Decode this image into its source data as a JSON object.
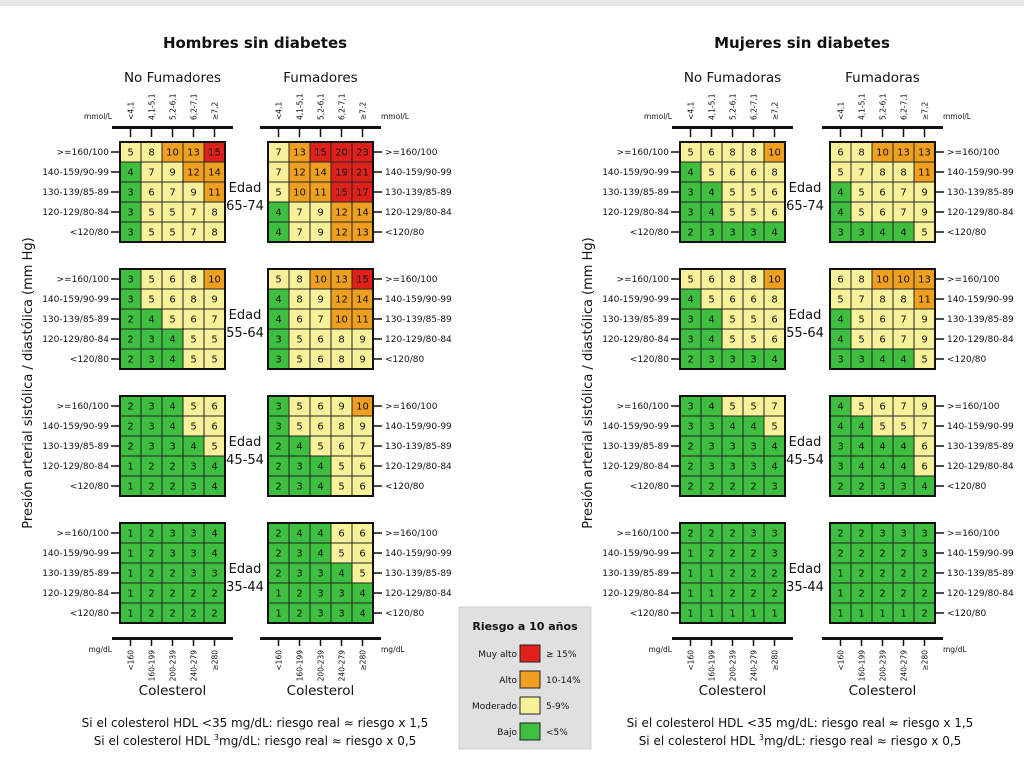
{
  "chart_data": [
    {
      "type": "heatmap",
      "title": "Hombres sin diabetes",
      "ylabel": "Presión arterial sistólica / diastólica (mm Hg)",
      "xlabel": "Colesterol",
      "columns_mmol": [
        "<4,1",
        "4,1-5,1",
        "5,2-6,1",
        "6,2-7,1",
        "≥7,2"
      ],
      "columns_mgdl": [
        "<160",
        "160-199",
        "200-239",
        "240-279",
        "≥280"
      ],
      "rows_bp": [
        ">=160/100",
        "140-159/90-99",
        "130-139/85-89",
        "120-129/80-84",
        "<120/80"
      ],
      "panels": [
        {
          "label": "No Fumadores",
          "ages": [
            {
              "age": "Edad\n65-74",
              "values": [
                [
                  5,
                  8,
                  10,
                  13,
                  15
                ],
                [
                  4,
                  7,
                  9,
                  12,
                  14
                ],
                [
                  3,
                  6,
                  7,
                  9,
                  11
                ],
                [
                  3,
                  5,
                  5,
                  7,
                  8
                ],
                [
                  3,
                  5,
                  5,
                  7,
                  8
                ]
              ]
            },
            {
              "age": "Edad\n55-64",
              "values": [
                [
                  3,
                  5,
                  6,
                  8,
                  10
                ],
                [
                  3,
                  5,
                  6,
                  8,
                  9
                ],
                [
                  2,
                  4,
                  5,
                  6,
                  7
                ],
                [
                  2,
                  3,
                  4,
                  5,
                  5
                ],
                [
                  2,
                  3,
                  4,
                  5,
                  5
                ]
              ]
            },
            {
              "age": "Edad\n45-54",
              "values": [
                [
                  2,
                  3,
                  4,
                  5,
                  6
                ],
                [
                  2,
                  3,
                  4,
                  5,
                  6
                ],
                [
                  2,
                  3,
                  3,
                  4,
                  5
                ],
                [
                  1,
                  2,
                  2,
                  3,
                  4
                ],
                [
                  1,
                  2,
                  2,
                  3,
                  4
                ]
              ]
            },
            {
              "age": "Edad\n35-44",
              "values": [
                [
                  1,
                  2,
                  3,
                  3,
                  4
                ],
                [
                  1,
                  2,
                  3,
                  3,
                  4
                ],
                [
                  1,
                  2,
                  2,
                  3,
                  3
                ],
                [
                  1,
                  2,
                  2,
                  2,
                  2
                ],
                [
                  1,
                  2,
                  2,
                  2,
                  2
                ]
              ]
            }
          ]
        },
        {
          "label": "Fumadores",
          "ages": [
            {
              "age": "Edad\n65-74",
              "values": [
                [
                  7,
                  13,
                  15,
                  20,
                  23
                ],
                [
                  7,
                  12,
                  14,
                  19,
                  21
                ],
                [
                  5,
                  10,
                  11,
                  15,
                  17
                ],
                [
                  4,
                  7,
                  9,
                  12,
                  14
                ],
                [
                  4,
                  7,
                  9,
                  12,
                  13
                ]
              ]
            },
            {
              "age": "Edad\n55-64",
              "values": [
                [
                  5,
                  8,
                  10,
                  13,
                  15
                ],
                [
                  4,
                  8,
                  9,
                  12,
                  14
                ],
                [
                  4,
                  6,
                  7,
                  10,
                  11
                ],
                [
                  3,
                  5,
                  6,
                  8,
                  9
                ],
                [
                  3,
                  5,
                  6,
                  8,
                  9
                ]
              ]
            },
            {
              "age": "Edad\n45-54",
              "values": [
                [
                  3,
                  5,
                  6,
                  9,
                  10
                ],
                [
                  3,
                  5,
                  6,
                  8,
                  9
                ],
                [
                  2,
                  4,
                  5,
                  6,
                  7
                ],
                [
                  2,
                  3,
                  4,
                  5,
                  6
                ],
                [
                  2,
                  3,
                  4,
                  5,
                  6
                ]
              ]
            },
            {
              "age": "Edad\n35-44",
              "values": [
                [
                  2,
                  4,
                  4,
                  6,
                  6
                ],
                [
                  2,
                  3,
                  4,
                  5,
                  6
                ],
                [
                  2,
                  3,
                  3,
                  4,
                  5
                ],
                [
                  1,
                  2,
                  3,
                  3,
                  4
                ],
                [
                  1,
                  2,
                  3,
                  3,
                  4
                ]
              ]
            }
          ]
        }
      ]
    },
    {
      "type": "heatmap",
      "title": "Mujeres sin diabetes",
      "ylabel": "Presión arterial sistólica / diastólica (mm Hg)",
      "xlabel": "Colesterol",
      "columns_mmol": [
        "<4,1",
        "4,1-5,1",
        "5,2-6,1",
        "6,2-7,1",
        "≥7,2"
      ],
      "columns_mgdl": [
        "<160",
        "160-199",
        "200-239",
        "240-279",
        "≥280"
      ],
      "rows_bp": [
        ">=160/100",
        "140-159/90-99",
        "130-139/85-89",
        "120-129/80-84",
        "<120/80"
      ],
      "panels": [
        {
          "label": "No Fumadoras",
          "ages": [
            {
              "age": "Edad\n65-74",
              "values": [
                [
                  5,
                  6,
                  8,
                  8,
                  10
                ],
                [
                  4,
                  5,
                  6,
                  6,
                  8
                ],
                [
                  3,
                  4,
                  5,
                  5,
                  6
                ],
                [
                  3,
                  4,
                  5,
                  5,
                  6
                ],
                [
                  2,
                  3,
                  3,
                  3,
                  4
                ]
              ]
            },
            {
              "age": "Edad\n55-64",
              "values": [
                [
                  5,
                  6,
                  8,
                  8,
                  10
                ],
                [
                  4,
                  5,
                  6,
                  6,
                  8
                ],
                [
                  3,
                  4,
                  5,
                  5,
                  6
                ],
                [
                  3,
                  4,
                  5,
                  5,
                  6
                ],
                [
                  2,
                  3,
                  3,
                  3,
                  4
                ]
              ]
            },
            {
              "age": "Edad\n45-54",
              "values": [
                [
                  3,
                  4,
                  5,
                  5,
                  7
                ],
                [
                  3,
                  3,
                  4,
                  4,
                  5
                ],
                [
                  2,
                  3,
                  3,
                  3,
                  4
                ],
                [
                  2,
                  3,
                  3,
                  3,
                  4
                ],
                [
                  2,
                  2,
                  2,
                  2,
                  3
                ]
              ]
            },
            {
              "age": "Edad\n35-44",
              "values": [
                [
                  2,
                  2,
                  2,
                  3,
                  3
                ],
                [
                  1,
                  2,
                  2,
                  2,
                  3
                ],
                [
                  1,
                  1,
                  2,
                  2,
                  2
                ],
                [
                  1,
                  1,
                  2,
                  2,
                  2
                ],
                [
                  1,
                  1,
                  1,
                  1,
                  1
                ]
              ]
            }
          ]
        },
        {
          "label": "Fumadoras",
          "ages": [
            {
              "age": "Edad\n65-74",
              "values": [
                [
                  6,
                  8,
                  10,
                  13,
                  13
                ],
                [
                  5,
                  7,
                  8,
                  8,
                  11
                ],
                [
                  4,
                  5,
                  6,
                  7,
                  9
                ],
                [
                  4,
                  5,
                  6,
                  7,
                  9
                ],
                [
                  3,
                  3,
                  4,
                  4,
                  5
                ]
              ]
            },
            {
              "age": "Edad\n55-64",
              "values": [
                [
                  6,
                  8,
                  10,
                  10,
                  13
                ],
                [
                  5,
                  7,
                  8,
                  8,
                  11
                ],
                [
                  4,
                  5,
                  6,
                  7,
                  9
                ],
                [
                  4,
                  5,
                  6,
                  7,
                  9
                ],
                [
                  3,
                  3,
                  4,
                  4,
                  5
                ]
              ]
            },
            {
              "age": "Edad\n45-54",
              "values": [
                [
                  4,
                  5,
                  6,
                  7,
                  9
                ],
                [
                  4,
                  4,
                  5,
                  5,
                  7
                ],
                [
                  3,
                  4,
                  4,
                  4,
                  6
                ],
                [
                  3,
                  4,
                  4,
                  4,
                  6
                ],
                [
                  2,
                  2,
                  3,
                  3,
                  4
                ]
              ]
            },
            {
              "age": "Edad\n35-44",
              "values": [
                [
                  2,
                  2,
                  3,
                  3,
                  3
                ],
                [
                  2,
                  2,
                  2,
                  2,
                  3
                ],
                [
                  1,
                  2,
                  2,
                  2,
                  2
                ],
                [
                  1,
                  2,
                  2,
                  2,
                  2
                ],
                [
                  1,
                  1,
                  1,
                  1,
                  2
                ]
              ]
            }
          ]
        }
      ]
    }
  ],
  "units": {
    "mmol": "mmol/L",
    "mgdl": "mg/dL"
  },
  "legend": {
    "title": "Riesgo a 10 años",
    "items": [
      {
        "label": "Muy alto",
        "range": "≥ 15%",
        "color": "#e0211b"
      },
      {
        "label": "Alto",
        "range": "10-14%",
        "color": "#f0a020"
      },
      {
        "label": "Moderado",
        "range": "5-9%",
        "color": "#f7f29a"
      },
      {
        "label": "Bajo",
        "range": "<5%",
        "color": "#3fbf3f"
      }
    ]
  },
  "notes": {
    "line1": "Si el colesterol HDL <35 mg/dL: riesgo real ≈ riesgo x 1,5",
    "line2_prefix": "Si el colesterol HDL ",
    "line2_sup": "3",
    "line2_suffix": "mg/dL: riesgo real ≈ riesgo x 0,5"
  }
}
